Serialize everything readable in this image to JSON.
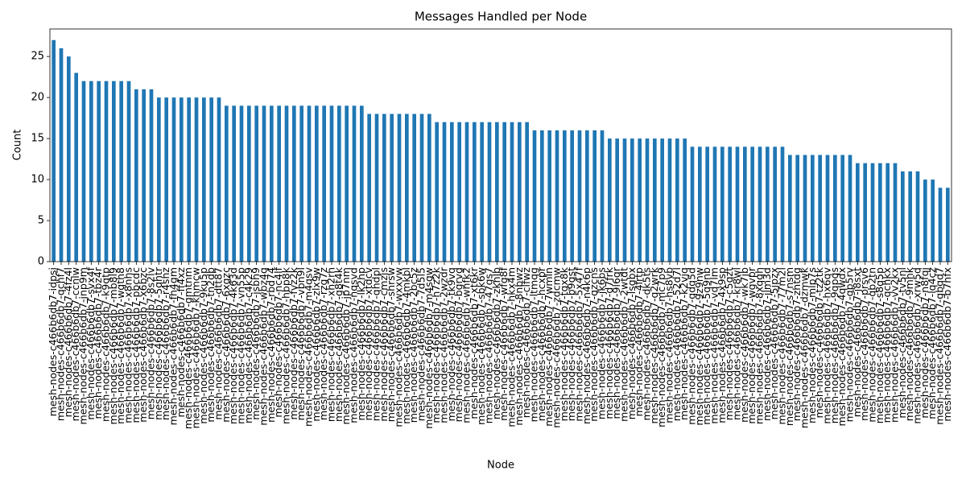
{
  "chart_data": {
    "type": "bar",
    "title": "Messages Handled per Node",
    "xlabel": "Node",
    "ylabel": "Count",
    "color": "#1f77b4",
    "categories": [
      "mesh-nodes-c466b6db7-idpsi",
      "mesh-nodes-c466b6db7-qchf7",
      "mesh-nodes-c466b6db7-4fz4l",
      "mesh-nodes-c466b6db7-ccnlw",
      "mesh-nodes-c466b6db7-jnp9m",
      "mesh-nodes-c466b6db7-svx4f",
      "mesh-nodes-c466b6db7-tbz4r",
      "mesh-nodes-c466b6db7-k9qtp",
      "mesh-nodes-c466b6db7-mb8l9",
      "mesh-nodes-c466b6db7-wqth8",
      "mesh-nodes-c466b6db7-x8nhs",
      "mesh-nodes-c466b6db7-pbcdc",
      "mesh-nodes-c466b6db7-x6bzc",
      "mesh-nodes-c466b6db7-8s2lv",
      "mesh-nodes-c466b6db7-5qhtr",
      "mesh-nodes-c466b6db7-r4shz",
      "mesh-nodes-c466b6db7-fh4gm",
      "mesh-nodes-c466b6db7-ff4xz",
      "mesh-nodes-c466b6db7-gmtnm",
      "mesh-nodes-c466b6db7-khmcw",
      "mesh-nodes-c466b6db7-9ku5p",
      "mesh-nodes-c466b6db7-tn2dp",
      "mesh-nodes-c466b6db7-dtt87",
      "mesh-nodes-c466b6db7-6xgzc",
      "mesh-nodes-c466b6db7-4k63d",
      "mesh-nodes-c466b6db7-vn55p",
      "mesh-nodes-c466b6db7-c4k29",
      "mesh-nodes-c466b6db7-jsbh9",
      "mesh-nodes-c466b6db7-wbz4q",
      "mesh-nodes-c466b6db7-rbd74",
      "mesh-nodes-c466b6db7-nc4lf",
      "mesh-nodes-c466b6db7-hbp8k",
      "mesh-nodes-c466b6db7-fvz2k",
      "mesh-nodes-c466b6db7-vbn9l",
      "mesh-nodes-c466b6db7-m4qsv",
      "mesh-nodes-c466b6db7-zlx9w",
      "mesh-nodes-c466b6db7-rzg7z",
      "mesh-nodes-c466b6db7-xh2rh",
      "mesh-nodes-c466b6db7-g8t4k",
      "mesh-nodes-c466b6db7-jp7nm",
      "mesh-nodes-c466b6db7-nqsvd",
      "mesh-nodes-c466b6db7-lk2hp",
      "mesh-nodes-c466b6db7-xtdcv",
      "mesh-nodes-c466b6db7-qhdpl",
      "mesh-nodes-c466b6db7-cmzjs",
      "mesh-nodes-c466b6db7-shrsw",
      "mesh-nodes-c466b6db7-wxxvw",
      "mesh-nodes-c466b6db7-4mkbl",
      "mesh-nodes-c466b6db7-2bc5z",
      "mesh-nodes-c466b6db7-7d5l5",
      "mesh-nodes-c466b6db7-m4sgw",
      "mesh-nodes-c466b6db7-h7z2k",
      "mesh-nodes-c466b6db7-2wzdr",
      "mesh-nodes-c466b6db7-tk9vq",
      "mesh-nodes-c466b6db7-bgrvg",
      "mesh-nodes-c466b6db7-wnfk2",
      "mesh-nodes-c466b6db7-xt6kr",
      "mesh-nodes-c466b6db7-sbk6w",
      "mesh-nodes-c466b6db7-47gs7",
      "mesh-nodes-c466b6db7-zknlb",
      "mesh-nodes-c466b6db7-wfg8f",
      "mesh-nodes-c466b6db7-hkx4m",
      "mesh-nodes-c466b6db7-8nbwz",
      "mesh-nodes-c466b6db7-clfwz",
      "mesh-nodes-c466b6db7-ltmqg",
      "mesh-nodes-c466b6db7-hcxpr",
      "mesh-nodes-c466b6db7-7wmln",
      "mesh-nodes-c466b6db7-zdcmw",
      "mesh-nodes-c466b6db7-tgx8k",
      "mesh-nodes-c466b6db7-b9qst",
      "mesh-nodes-c466b6db7-5x47f",
      "mesh-nodes-c466b6db7-n4k6p",
      "mesh-nodes-c466b6db7-qzcns",
      "mesh-nodes-c466b6db7-jk6bs",
      "mesh-nodes-c466b6db7-d7frk",
      "mesh-nodes-c466b6db7-9l6gr",
      "mesh-nodes-c466b6db7-2wtdt",
      "mesh-nodes-c466b6db7-lsgbx",
      "mesh-nodes-c466b6db7-4lrtp",
      "mesh-nodes-c466b6db7-dk5ts",
      "mesh-nodes-c466b6db7-q2wrk",
      "mesh-nodes-c466b6db7-mc7p9",
      "mesh-nodes-c466b6db7-hs8vb",
      "mesh-nodes-c466b6db7-52d7l",
      "mesh-nodes-c466b6db7-k2vjq",
      "mesh-nodes-c466b6db7-qdq5d",
      "mesh-nodes-c466b6db7-9z9nw",
      "mesh-nodes-c466b6db7-5q9nb",
      "mesh-nodes-c466b6db7-vq7lm",
      "mesh-nodes-c466b6db7-4x9sp",
      "mesh-nodes-c466b6db7-c5qzt",
      "mesh-nodes-c466b6db7-kr8wl",
      "mesh-nodes-c466b6db7-wk7jb",
      "mesh-nodes-c466b6db7-wgvpr",
      "mesh-nodes-c466b6db7-8xqqh",
      "mesh-nodes-c466b6db7-jlm3d",
      "mesh-nodes-c466b6db7-5jpzx",
      "mesh-nodes-c466b6db7-77m2l",
      "mesh-nodes-c466b6db7-s7nsm",
      "mesh-nodes-c466b6db7-zhtdg",
      "mesh-nodes-c466b6db7-dzmwk",
      "mesh-nodes-c466b6db7-mlp7s",
      "mesh-nodes-c466b6db7-tz2tk",
      "mesh-nodes-c466b6db7-hx6qv",
      "mesh-nodes-c466b6db7-9qpqs",
      "mesh-nodes-c466b6db7-4qwdx",
      "mesh-nodes-c466b6db7-gp5rv",
      "mesh-nodes-c466b6db7-j8sxt",
      "mesh-nodes-c466b6db7-prsv6",
      "mesh-nodes-c466b6db7-qb2tn",
      "mesh-nodes-c466b6db7-s8q5p",
      "mesh-nodes-c466b6db7-qchkx",
      "mesh-nodes-c466b6db7-vv2kx",
      "mesh-nodes-c466b6db7-tv5nl",
      "mesh-nodes-c466b6db7-9mhk",
      "mesh-nodes-c466b6db7-xrw5d",
      "mesh-nodes-c466b6db7-n8fqj",
      "mesh-nodes-c466b6db7-lq4cz",
      "mesh-nodes-c466b6db7-gbqd7",
      "mesh-nodes-c466b6db7-b7nfx"
    ],
    "values": [
      27,
      26,
      25,
      23,
      22,
      22,
      22,
      22,
      22,
      22,
      22,
      21,
      21,
      21,
      20,
      20,
      20,
      20,
      20,
      20,
      20,
      20,
      20,
      19,
      19,
      19,
      19,
      19,
      19,
      19,
      19,
      19,
      19,
      19,
      19,
      19,
      19,
      19,
      19,
      19,
      19,
      19,
      18,
      18,
      18,
      18,
      18,
      18,
      18,
      18,
      18,
      17,
      17,
      17,
      17,
      17,
      17,
      17,
      17,
      17,
      17,
      17,
      17,
      17,
      16,
      16,
      16,
      16,
      16,
      16,
      16,
      16,
      16,
      16,
      15,
      15,
      15,
      15,
      15,
      15,
      15,
      15,
      15,
      15,
      15,
      14,
      14,
      14,
      14,
      14,
      14,
      14,
      14,
      14,
      14,
      14,
      14,
      14,
      13,
      13,
      13,
      13,
      13,
      13,
      13,
      13,
      13,
      12,
      12,
      12,
      12,
      12,
      12,
      11,
      11,
      11,
      10,
      10,
      9,
      9
    ],
    "ylim": [
      0,
      28.35
    ],
    "yticks": [
      0,
      5,
      10,
      15,
      20,
      25
    ]
  }
}
